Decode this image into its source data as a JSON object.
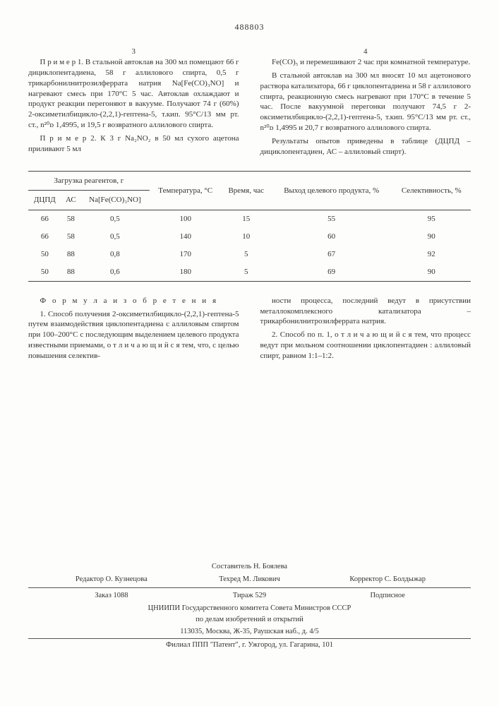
{
  "patent_number": "488803",
  "page_left_num": "3",
  "page_right_num": "4",
  "left_paragraphs": [
    "П р и м е р  1. В стальной автоклав на 300 мл помещают 66 г дициклопентадиена, 58 г аллилового спирта, 0,5 г трикарбонилнитрозилферрата натрия Na[Fe(CO)₃NO] и нагревают смесь при 170°С 5 час. Автоклав охлаждают и продукт реакции перегоняют в вакууме. Получают 74 г (60%) 2-оксиметилбицикло-(2,2,1)-гептена-5, т.кип. 95°С/13 мм рт. ст., n²⁰ᴅ 1,4995, и 19,5 г возвратного аллилового спирта.",
    "П р и м е р  2. К 3 г Na₂NO₂ в 50 мл сухого ацетона приливают 5 мл"
  ],
  "right_paragraphs": [
    "Fe(CO)₅ и перемешивают 2 час при комнатной температуре.",
    "В стальной автоклав на 300 мл вносят 10 мл ацетонового раствора катализатора, 66 г циклопентадиена и 58 г аллилового спирта, реакционную смесь нагревают при 170°С в течение 5 час. После вакуумной перегонки получают 74,5 г 2-оксиметилбицикло-(2,2,1)-гептена-5, т.кип. 95°С/13 мм рт. ст., n²⁰ᴅ 1,4995 и 20,7 г возвратного аллилового спирта.",
    "Результаты опытов приведены в таблице (ДЦПД – дициклопентадиен, АС – аллиловый спирт)."
  ],
  "table": {
    "group_head": "Загрузка реагентов, г",
    "columns_sub": [
      "ДЦПД",
      "АС",
      "Na[Fe(CO)₃NO]"
    ],
    "columns_rest": [
      "Температура, °С",
      "Время, час",
      "Выход целевого продукта, %",
      "Селективность, %"
    ],
    "rows": [
      [
        "66",
        "58",
        "0,5",
        "100",
        "15",
        "55",
        "95"
      ],
      [
        "66",
        "58",
        "0,5",
        "140",
        "10",
        "60",
        "90"
      ],
      [
        "50",
        "88",
        "0,8",
        "170",
        "5",
        "67",
        "92"
      ],
      [
        "50",
        "88",
        "0,6",
        "180",
        "5",
        "69",
        "90"
      ]
    ]
  },
  "formula_title": "Ф о р м у л а   и з о б р е т е н и я",
  "claims_left": [
    "1. Способ получения 2-оксиметилбицикло-(2,2,1)-гептена-5 путем взаимодействия циклопентадиена с аллиловым спиртом при 100–200°С с последующим выделением целевого продукта известными приемами, о т л и ч а ю щ и й с я тем, что, с целью повышения селектив-"
  ],
  "claims_right": [
    "ности процесса, последний ведут в присутствии металлокомплексного катализатора – трикарбонилнитрозилферрата натрия.",
    "2. Способ по п. 1, о т л и ч а ю щ и й с я тем, что процесс ведут при мольном соотношении циклопентадиен : аллиловый спирт, равном 1:1–1:2."
  ],
  "footer": {
    "compiler": "Составитель Н. Боялева",
    "editor": "Редактор О. Кузнецова",
    "techred": "Техред М. Ликович",
    "corrector": "Корректор С. Болдыжар",
    "order": "Заказ 1088",
    "tirage": "Тираж 529",
    "signed": "Подписное",
    "org1": "ЦНИИПИ Государственного комитета Совета Министров СССР",
    "org2": "по делам изобретений и открытий",
    "addr": "113035, Москва, Ж-35, Раушская наб., д. 4/5",
    "branch": "Филиал ППП \"Патент\", г. Ужгород, ул. Гагарина, 101"
  }
}
